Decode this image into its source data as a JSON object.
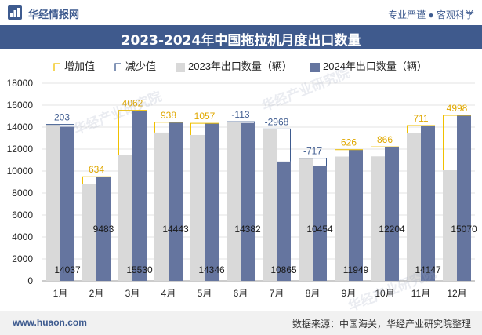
{
  "header": {
    "brand": "华经情报网",
    "tagline": "专业严谨 ● 客观科学"
  },
  "chart_data": {
    "type": "bar",
    "title": "2023-2024年中国拖拉机月度出口数量",
    "categories": [
      "1月",
      "2月",
      "3月",
      "4月",
      "5月",
      "6月",
      "7月",
      "8月",
      "9月",
      "10月",
      "11月",
      "12月"
    ],
    "series": [
      {
        "name": "2023年出口数量（辆）",
        "values": [
          14240,
          8849,
          11468,
          13505,
          13289,
          14495,
          13833,
          11171,
          11323,
          11338,
          13436,
          10072
        ],
        "color": "#d9d9d9"
      },
      {
        "name": "2024年出口数量（辆）",
        "values": [
          14037,
          9483,
          15530,
          14443,
          14346,
          14382,
          10865,
          10454,
          11949,
          12204,
          14147,
          15070
        ],
        "color": "#65759f"
      }
    ],
    "changes": [
      -203,
      634,
      4062,
      938,
      1057,
      -113,
      -2968,
      -717,
      626,
      866,
      711,
      4998
    ],
    "change_legend": {
      "increase": "增加值",
      "decrease": "减少值"
    },
    "colors": {
      "increase": "#f0c000",
      "decrease": "#3e5b8f",
      "increase_label": "#e0a800",
      "decrease_label": "#3e5b8f"
    },
    "ylim": [
      0,
      18000
    ],
    "yticks": [
      0,
      2000,
      4000,
      6000,
      8000,
      10000,
      12000,
      14000,
      16000,
      18000
    ],
    "xlabel": "",
    "ylabel": "",
    "grid": true,
    "legend_position": "top"
  },
  "footer": {
    "site": "www.huaon.com",
    "source": "数据来源：中国海关，华经产业研究院整理"
  },
  "watermark": "华经产业研究院"
}
